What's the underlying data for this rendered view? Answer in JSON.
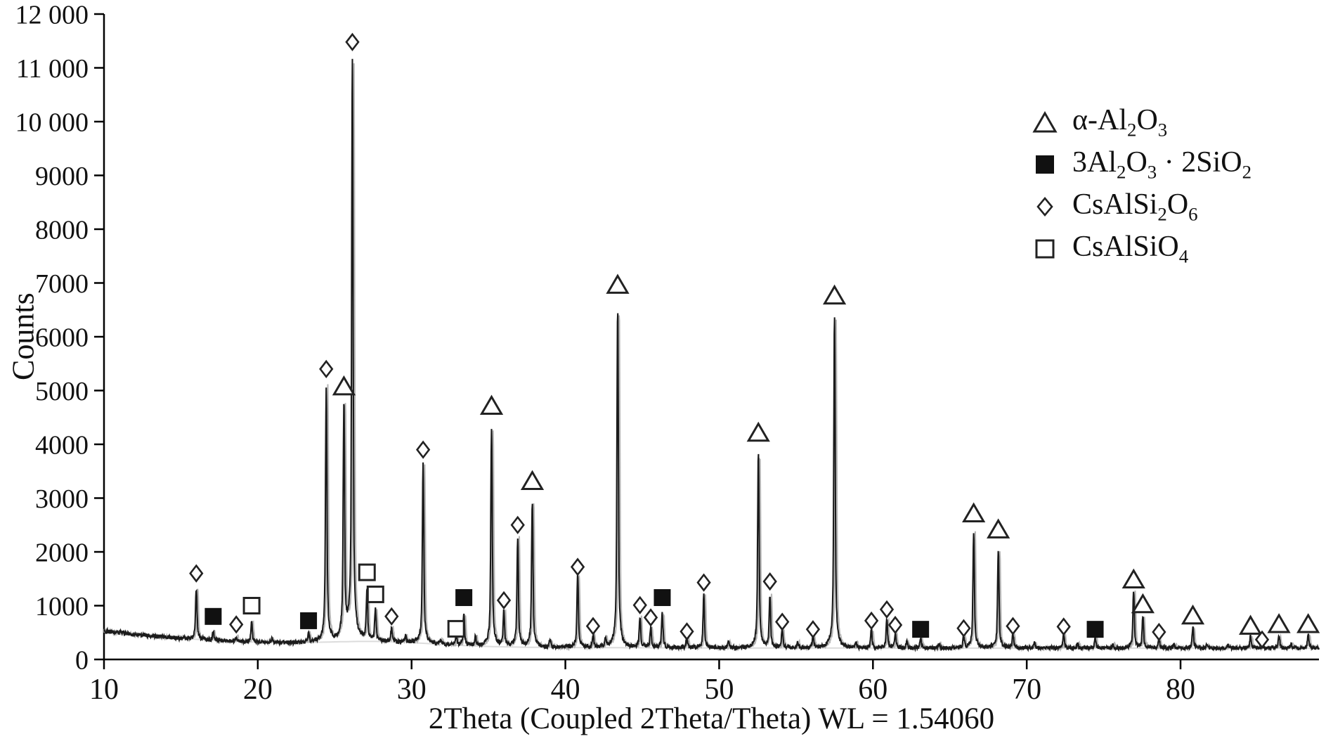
{
  "figure": {
    "background": "#ffffff"
  },
  "chart_data": {
    "type": "line",
    "title": "",
    "xlabel": "2Theta (Coupled 2Theta/Theta) WL = 1.54060",
    "ylabel": "Counts",
    "xlim": [
      10,
      89
    ],
    "ylim": [
      0,
      12000
    ],
    "x_ticks": [
      10,
      20,
      30,
      40,
      50,
      60,
      70,
      80
    ],
    "y_ticks": [
      0,
      1000,
      2000,
      3000,
      4000,
      5000,
      6000,
      7000,
      8000,
      9000,
      10000,
      11000,
      12000
    ],
    "y_tick_labels": [
      "0",
      "1000",
      "2000",
      "3000",
      "4000",
      "5000",
      "6000",
      "7000",
      "8000",
      "9000",
      "10 000",
      "11 000",
      "12 000"
    ],
    "grid": false,
    "legend_position": "top-right",
    "colors": {
      "trace": "#1b1b1b",
      "trace_shadow": "#b5b5b5",
      "background_line": "#dcdcdc",
      "axis": "#000000",
      "marker_stroke": "#222222",
      "marker_solid": "#111111"
    },
    "baseline": {
      "a": 210,
      "b": 320,
      "decay": 9,
      "hump_h": 80,
      "hump_x": 28,
      "hump_w": 5
    },
    "marker_phase_names": {
      "t": "alpha-al2o3",
      "fs": "3al2o3-2sio2",
      "d": "csalsi2o6",
      "os": "csalsio4"
    },
    "peaks": [
      {
        "x": 16.0,
        "top": 1330,
        "marker": "d",
        "marker_y": 1600
      },
      {
        "x": 17.1,
        "top": 520,
        "marker": "fs",
        "marker_y": 800
      },
      {
        "x": 18.6,
        "top": 430,
        "marker": "d",
        "marker_y": 650
      },
      {
        "x": 19.6,
        "top": 680,
        "marker": "os",
        "marker_y": 1000
      },
      {
        "x": 20.9,
        "top": 380
      },
      {
        "x": 23.3,
        "top": 480,
        "marker": "fs",
        "marker_y": 720
      },
      {
        "x": 24.45,
        "top": 5050,
        "marker": "d",
        "marker_y": 5400
      },
      {
        "x": 25.6,
        "top": 4680,
        "marker": "t",
        "marker_y": 5060
      },
      {
        "x": 26.15,
        "top": 11150,
        "marker": "d",
        "marker_y": 11480
      },
      {
        "x": 27.1,
        "top": 1250,
        "marker": "os",
        "marker_y": 1620
      },
      {
        "x": 27.65,
        "top": 900,
        "marker": "os",
        "marker_y": 1210
      },
      {
        "x": 28.7,
        "top": 580,
        "marker": "d",
        "marker_y": 800
      },
      {
        "x": 29.6,
        "top": 430
      },
      {
        "x": 30.75,
        "top": 3650,
        "marker": "d",
        "marker_y": 3900
      },
      {
        "x": 31.9,
        "top": 380
      },
      {
        "x": 32.9,
        "top": 430,
        "marker": "os",
        "marker_y": 570
      },
      {
        "x": 33.4,
        "top": 820,
        "marker": "fs",
        "marker_y": 1150
      },
      {
        "x": 34.15,
        "top": 420
      },
      {
        "x": 35.2,
        "top": 4300,
        "marker": "t",
        "marker_y": 4700
      },
      {
        "x": 36.0,
        "top": 880,
        "marker": "d",
        "marker_y": 1100
      },
      {
        "x": 36.9,
        "top": 2250,
        "marker": "d",
        "marker_y": 2500
      },
      {
        "x": 37.85,
        "top": 2900,
        "marker": "t",
        "marker_y": 3300
      },
      {
        "x": 39.0,
        "top": 360
      },
      {
        "x": 40.8,
        "top": 1560,
        "marker": "d",
        "marker_y": 1720
      },
      {
        "x": 41.8,
        "top": 440,
        "marker": "d",
        "marker_y": 620
      },
      {
        "x": 42.6,
        "top": 380
      },
      {
        "x": 43.4,
        "top": 6500,
        "marker": "t",
        "marker_y": 6950
      },
      {
        "x": 44.85,
        "top": 790,
        "marker": "d",
        "marker_y": 1010
      },
      {
        "x": 45.55,
        "top": 590,
        "marker": "d",
        "marker_y": 780
      },
      {
        "x": 46.3,
        "top": 850,
        "marker": "fs",
        "marker_y": 1150
      },
      {
        "x": 47.9,
        "top": 400,
        "marker": "d",
        "marker_y": 520
      },
      {
        "x": 49.0,
        "top": 1190,
        "marker": "d",
        "marker_y": 1430
      },
      {
        "x": 50.6,
        "top": 330
      },
      {
        "x": 52.55,
        "top": 3830,
        "marker": "t",
        "marker_y": 4200
      },
      {
        "x": 53.3,
        "top": 1180,
        "marker": "d",
        "marker_y": 1450
      },
      {
        "x": 54.1,
        "top": 540,
        "marker": "d",
        "marker_y": 700
      },
      {
        "x": 55.1,
        "top": 320
      },
      {
        "x": 56.1,
        "top": 420,
        "marker": "d",
        "marker_y": 560
      },
      {
        "x": 57.5,
        "top": 6400,
        "marker": "t",
        "marker_y": 6750
      },
      {
        "x": 58.9,
        "top": 310
      },
      {
        "x": 59.9,
        "top": 540,
        "marker": "d",
        "marker_y": 720
      },
      {
        "x": 60.9,
        "top": 740,
        "marker": "d",
        "marker_y": 930
      },
      {
        "x": 61.45,
        "top": 490,
        "marker": "d",
        "marker_y": 640
      },
      {
        "x": 62.2,
        "top": 330
      },
      {
        "x": 63.1,
        "top": 400,
        "marker": "fs",
        "marker_y": 560
      },
      {
        "x": 64.3,
        "top": 300
      },
      {
        "x": 65.9,
        "top": 430,
        "marker": "d",
        "marker_y": 580
      },
      {
        "x": 66.55,
        "top": 2350,
        "marker": "t",
        "marker_y": 2700
      },
      {
        "x": 68.15,
        "top": 2030,
        "marker": "t",
        "marker_y": 2400
      },
      {
        "x": 69.1,
        "top": 470,
        "marker": "d",
        "marker_y": 620
      },
      {
        "x": 70.5,
        "top": 300
      },
      {
        "x": 72.4,
        "top": 460,
        "marker": "d",
        "marker_y": 610
      },
      {
        "x": 73.3,
        "top": 290
      },
      {
        "x": 74.45,
        "top": 400,
        "marker": "fs",
        "marker_y": 560
      },
      {
        "x": 75.6,
        "top": 280
      },
      {
        "x": 76.95,
        "top": 1240,
        "marker": "t",
        "marker_y": 1470
      },
      {
        "x": 77.55,
        "top": 790,
        "marker": "t",
        "marker_y": 1010
      },
      {
        "x": 78.6,
        "top": 370,
        "marker": "d",
        "marker_y": 510
      },
      {
        "x": 79.6,
        "top": 280
      },
      {
        "x": 80.8,
        "top": 600,
        "marker": "t",
        "marker_y": 800
      },
      {
        "x": 81.7,
        "top": 270
      },
      {
        "x": 83.1,
        "top": 270
      },
      {
        "x": 84.55,
        "top": 430,
        "marker": "t",
        "marker_y": 610
      },
      {
        "x": 85.3,
        "top": 260,
        "marker": "d",
        "marker_y": 370
      },
      {
        "x": 86.4,
        "top": 460,
        "marker": "t",
        "marker_y": 640
      },
      {
        "x": 87.2,
        "top": 280
      },
      {
        "x": 88.3,
        "top": 460,
        "marker": "t",
        "marker_y": 640
      }
    ],
    "legend": [
      {
        "id": "alpha-al2o3",
        "symbol": "triangle-open",
        "segments": [
          {
            "t": "α-Al"
          },
          {
            "t": "2",
            "sub": true
          },
          {
            "t": "O"
          },
          {
            "t": "3",
            "sub": true
          }
        ]
      },
      {
        "id": "3al2o3-2sio2",
        "symbol": "square-filled",
        "segments": [
          {
            "t": "3Al"
          },
          {
            "t": "2",
            "sub": true
          },
          {
            "t": "O"
          },
          {
            "t": "3",
            "sub": true
          },
          {
            "t": " · 2SiO"
          },
          {
            "t": "2",
            "sub": true
          }
        ]
      },
      {
        "id": "csalsi2o6",
        "symbol": "diamond-open",
        "segments": [
          {
            "t": "CsAlSi"
          },
          {
            "t": "2",
            "sub": true
          },
          {
            "t": "O"
          },
          {
            "t": "6",
            "sub": true
          }
        ]
      },
      {
        "id": "csalsio4",
        "symbol": "square-open",
        "segments": [
          {
            "t": "CsAlSiO"
          },
          {
            "t": "4",
            "sub": true
          }
        ]
      }
    ]
  }
}
